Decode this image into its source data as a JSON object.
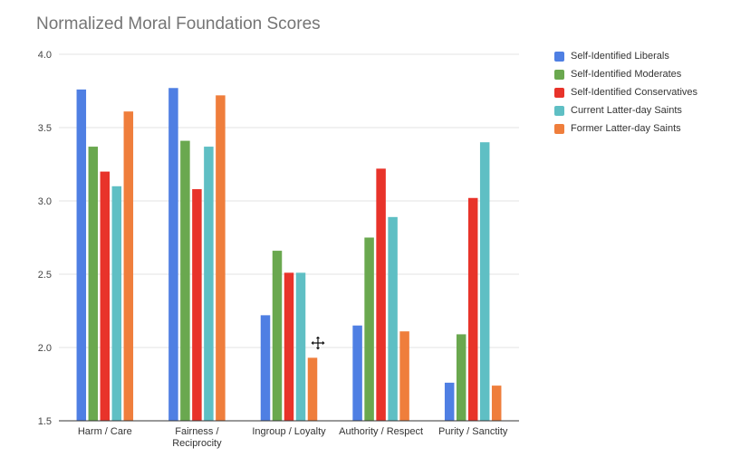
{
  "chart_data": {
    "type": "bar",
    "title": "Normalized Moral Foundation Scores",
    "xlabel": "",
    "ylabel": "",
    "ylim": [
      1.5,
      4.0
    ],
    "yticks": [
      "1.5",
      "2.0",
      "2.5",
      "3.0",
      "3.5",
      "4.0"
    ],
    "grid": true,
    "legend_position": "right",
    "categories": [
      [
        "Harm / Care"
      ],
      [
        "Fairness /",
        "Reciprocity"
      ],
      [
        "Ingroup / Loyalty"
      ],
      [
        "Authority / Respect"
      ],
      [
        "Purity / Sanctity"
      ]
    ],
    "series": [
      {
        "name": "Self-Identified Liberals",
        "color": "#4f7fe3",
        "values": [
          3.76,
          3.77,
          2.22,
          2.15,
          1.76
        ]
      },
      {
        "name": "Self-Identified Moderates",
        "color": "#6aa84f",
        "values": [
          3.37,
          3.41,
          2.66,
          2.75,
          2.09
        ]
      },
      {
        "name": "Self-Identified Conservatives",
        "color": "#e8332a",
        "values": [
          3.2,
          3.08,
          2.51,
          3.22,
          3.02
        ]
      },
      {
        "name": "Current Latter-day Saints",
        "color": "#5fbfc4",
        "values": [
          3.1,
          3.37,
          2.51,
          2.89,
          3.4
        ]
      },
      {
        "name": "Former Latter-day Saints",
        "color": "#ef7e3c",
        "values": [
          3.61,
          3.72,
          1.93,
          2.11,
          1.74
        ]
      }
    ]
  },
  "cursor": {
    "icon": "move-cursor-icon"
  }
}
